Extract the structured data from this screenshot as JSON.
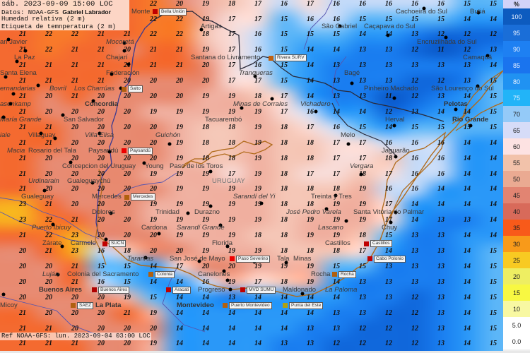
{
  "header": {
    "datetime": "sáb. 2023-09-09 15:00 LOC",
    "source_label": "Datos: NOAA-GFS",
    "author": "Gabriel Labrador",
    "field_shaded": "Humedad relativa (2 m)",
    "field_labels": "Etiqueta de temnperatura (2 m)"
  },
  "footer": {
    "reference": "Ref NOAA-GFS: lun. 2023-09-04 03:00 LOC"
  },
  "legend": {
    "unit": "%",
    "items": [
      {
        "label": "100",
        "color": "#0d5bbf"
      },
      {
        "label": "95",
        "color": "#1a6ed8"
      },
      {
        "label": "90",
        "color": "#1e80f2"
      },
      {
        "label": "85",
        "color": "#1a74ee"
      },
      {
        "label": "80",
        "color": "#2092f2"
      },
      {
        "label": "75",
        "color": "#22b4f8"
      },
      {
        "label": "70",
        "color": "#94caf8"
      },
      {
        "label": "65",
        "color": "#d6dcf8"
      },
      {
        "label": "60",
        "color": "#fde2e2"
      },
      {
        "label": "55",
        "color": "#f2c2aa"
      },
      {
        "label": "50",
        "color": "#eaaa92"
      },
      {
        "label": "45",
        "color": "#e28472"
      },
      {
        "label": "40",
        "color": "#d86a5a"
      },
      {
        "label": "35",
        "color": "#f85a1a"
      },
      {
        "label": "30",
        "color": "#f89a1a"
      },
      {
        "label": "25",
        "color": "#f8ca22"
      },
      {
        "label": "20",
        "color": "#eeee62"
      },
      {
        "label": "15",
        "color": "#f8f842"
      },
      {
        "label": "10",
        "color": "#f8f8a2"
      },
      {
        "label": "5.0",
        "color": "#ffffff"
      },
      {
        "label": "0.0",
        "color": "#ffffff"
      }
    ]
  },
  "temperature_grid": [
    [
      null,
      null,
      null,
      null,
      null,
      22,
      20,
      19,
      18,
      17,
      16,
      17,
      16,
      16,
      16,
      16,
      16,
      15,
      15
    ],
    [
      null,
      null,
      null,
      null,
      null,
      22,
      22,
      19,
      17,
      17,
      15,
      16,
      16,
      15,
      15,
      15,
      15,
      14,
      14
    ],
    [
      21,
      22,
      22,
      21,
      21,
      22,
      22,
      18,
      17,
      16,
      15,
      15,
      15,
      14,
      14,
      13,
      12,
      12,
      12
    ],
    [
      21,
      22,
      21,
      21,
      20,
      21,
      21,
      19,
      17,
      16,
      15,
      14,
      14,
      13,
      13,
      12,
      11,
      12,
      13
    ],
    [
      21,
      21,
      21,
      21,
      21,
      21,
      21,
      20,
      17,
      16,
      15,
      14,
      13,
      13,
      13,
      13,
      13,
      13,
      14
    ],
    [
      21,
      21,
      21,
      21,
      20,
      20,
      20,
      20,
      17,
      17,
      15,
      14,
      13,
      13,
      13,
      12,
      12,
      13,
      15
    ],
    [
      21,
      20,
      21,
      20,
      20,
      20,
      20,
      19,
      19,
      18,
      17,
      14,
      13,
      13,
      11,
      12,
      13,
      14,
      15
    ],
    [
      21,
      20,
      20,
      20,
      20,
      19,
      19,
      19,
      19,
      19,
      17,
      16,
      14,
      14,
      12,
      13,
      14,
      14,
      15
    ],
    [
      21,
      21,
      20,
      20,
      20,
      20,
      19,
      18,
      18,
      19,
      18,
      17,
      16,
      15,
      14,
      15,
      15,
      15,
      15
    ],
    [
      21,
      21,
      20,
      20,
      20,
      20,
      19,
      18,
      18,
      19,
      18,
      18,
      17,
      17,
      16,
      16,
      16,
      14,
      14
    ],
    [
      21,
      20,
      20,
      20,
      20,
      20,
      19,
      18,
      18,
      19,
      18,
      18,
      17,
      17,
      18,
      16,
      16,
      14,
      14
    ],
    [
      21,
      20,
      20,
      20,
      20,
      19,
      19,
      19,
      17,
      19,
      18,
      17,
      17,
      18,
      17,
      16,
      16,
      14,
      14
    ],
    [
      21,
      20,
      20,
      20,
      20,
      20,
      19,
      19,
      19,
      19,
      18,
      18,
      18,
      19,
      16,
      16,
      14,
      14,
      14
    ],
    [
      23,
      21,
      20,
      20,
      20,
      19,
      19,
      19,
      19,
      19,
      18,
      18,
      19,
      19,
      17,
      14,
      14,
      14,
      14
    ],
    [
      23,
      22,
      21,
      20,
      20,
      19,
      19,
      19,
      19,
      19,
      18,
      19,
      19,
      19,
      17,
      14,
      13,
      13,
      14
    ],
    [
      21,
      22,
      23,
      20,
      20,
      20,
      19,
      19,
      19,
      18,
      18,
      19,
      19,
      18,
      15,
      13,
      13,
      14,
      14
    ],
    [
      20,
      21,
      23,
      16,
      18,
      20,
      20,
      19,
      19,
      19,
      18,
      18,
      18,
      17,
      14,
      13,
      13,
      14,
      15
    ],
    [
      20,
      20,
      21,
      15,
      15,
      14,
      17,
      20,
      20,
      19,
      19,
      19,
      15,
      15,
      13,
      13,
      13,
      14,
      15
    ],
    [
      20,
      20,
      21,
      16,
      15,
      14,
      14,
      16,
      19,
      17,
      18,
      19,
      14,
      13,
      13,
      13,
      13,
      14,
      15
    ],
    [
      20,
      20,
      20,
      20,
      19,
      15,
      14,
      14,
      13,
      14,
      14,
      14,
      14,
      13,
      13,
      12,
      13,
      14,
      15
    ],
    [
      21,
      20,
      20,
      20,
      21,
      19,
      14,
      14,
      14,
      14,
      14,
      14,
      13,
      13,
      12,
      12,
      13,
      14,
      15
    ],
    [
      21,
      21,
      20,
      20,
      20,
      20,
      14,
      14,
      14,
      14,
      14,
      13,
      13,
      12,
      12,
      12,
      13,
      14,
      15
    ],
    [
      21,
      21,
      21,
      20,
      20,
      19,
      14,
      14,
      14,
      14,
      13,
      13,
      12,
      12,
      12,
      12,
      13,
      14,
      15
    ]
  ],
  "cities": [
    "Monte",
    "Artigas",
    "São Gabriel",
    "Caçapava do Sul",
    "Cachoeira do Sul",
    "Butiá",
    "Encruzilhada do Sul",
    "Camaquã",
    "an Javier",
    "La Paz",
    "Mocoretá",
    "Chajarí",
    "Santa Elena",
    "Federación",
    "ernandarias",
    "Los Charrúas",
    "Concordia",
    "Santana do Livramento",
    "Tranqueras",
    "Bagé",
    "São Lourenço do Sul",
    "Pinheiro Machado",
    "asenkamp",
    "Bovril",
    "María Grande",
    "San Salvador",
    "Minas de Corrales",
    "Tacuarembó",
    "Vichadero",
    "Pelotas",
    "iale",
    "Villaguay",
    "Herval",
    "Rio Grande",
    "Macia",
    "Rosario del Tala",
    "Villa Elisa",
    "Paysandú",
    "Guichón",
    "Melo",
    "Concepcion del Uruguay",
    "Urdinarain",
    "Young",
    "Jaguarão",
    "Paso de los Toros",
    "Vergara",
    "Gualeguaychú",
    "URUGUAY",
    "Gualeguay",
    "Mercedes",
    "Treinta y Tres",
    "Sarandí del Yi",
    "Durazno",
    "Dolores",
    "José Pedro Varela",
    "Trinidad",
    "Santa Vitória do Palmar",
    "Chuy",
    "Lascano",
    "Puerto Ibicuy",
    "Sarandí Grande",
    "Cardona",
    "Carmelo",
    "Zárate",
    "Florida",
    "Castillos",
    "Tarariras",
    "San José de Mayo",
    "Tala",
    "Minas",
    "Colonia del Sacramento",
    "Rocha",
    "Luján",
    "Canelones",
    "Buenos Aires",
    "La Paloma",
    "Progreso",
    "Montevideo",
    "Maldonado",
    "La Plata",
    "Micoy"
  ],
  "stations": [
    {
      "label": "Bella Unión",
      "color": "#c00000"
    },
    {
      "label": "Salto",
      "color": "#b06010"
    },
    {
      "label": "Rivera SURV",
      "color": "#c06010"
    },
    {
      "label": "Paysandú",
      "color": "#ee0000"
    },
    {
      "label": "Mercedes",
      "color": "#b06010"
    },
    {
      "label": "SUCN",
      "color": "#c00000"
    },
    {
      "label": "Colonia",
      "color": "#b06010"
    },
    {
      "label": "Buenos Aires",
      "color": "#b00000"
    },
    {
      "label": "SAEZ",
      "color": "#b06010"
    },
    {
      "label": "Paso Severino",
      "color": "#ee0000"
    },
    {
      "label": "Aracati",
      "color": "#c00000"
    },
    {
      "label": "MVD SUMU",
      "color": "#c00000"
    },
    {
      "label": "Puerto Montevideo",
      "color": "#b06010"
    },
    {
      "label": "Punta del Este",
      "color": "#b0a010"
    },
    {
      "label": "Rocha",
      "color": "#b06010"
    },
    {
      "label": "Castillos",
      "color": "#c00000"
    },
    {
      "label": "Cabo Polonio",
      "color": "#c00000"
    }
  ]
}
